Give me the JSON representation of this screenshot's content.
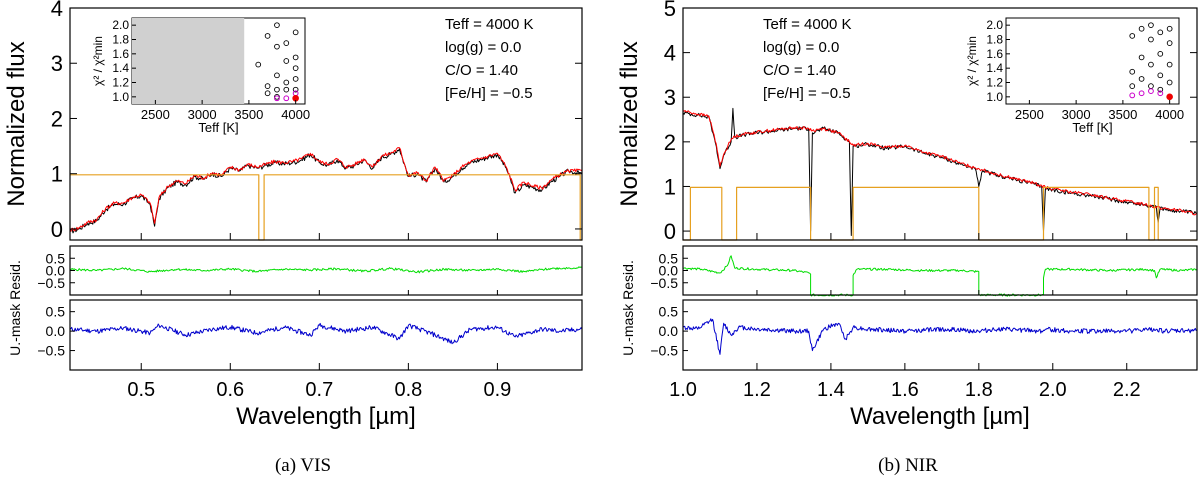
{
  "chart_data": [
    {
      "type": "line",
      "caption": "(a) VIS",
      "xlabel": "Wavelength [µm]",
      "xlim": [
        0.42,
        0.995
      ],
      "xticks": [
        "0.5",
        "0.6",
        "0.7",
        "0.8",
        "0.9"
      ],
      "main": {
        "ylabel": "Normalized flux",
        "ylim": [
          -0.2,
          4.0
        ],
        "yticks": [
          "0",
          "1",
          "2",
          "3",
          "4"
        ],
        "annotations": [
          "Teff = 4000 K",
          "log(g) = 0.0",
          "C/O = 1.40",
          "[Fe/H] = −0.5"
        ],
        "series": [
          {
            "name": "observed",
            "color": "#000000",
            "x": [
              0.42,
              0.43,
              0.44,
              0.45,
              0.46,
              0.47,
              0.48,
              0.49,
              0.5,
              0.51,
              0.515,
              0.52,
              0.53,
              0.54,
              0.55,
              0.56,
              0.57,
              0.58,
              0.59,
              0.6,
              0.61,
              0.62,
              0.63,
              0.64,
              0.65,
              0.66,
              0.67,
              0.68,
              0.69,
              0.7,
              0.71,
              0.72,
              0.73,
              0.74,
              0.75,
              0.76,
              0.77,
              0.78,
              0.79,
              0.8,
              0.81,
              0.82,
              0.83,
              0.84,
              0.85,
              0.86,
              0.87,
              0.88,
              0.89,
              0.9,
              0.91,
              0.92,
              0.93,
              0.94,
              0.95,
              0.96,
              0.97,
              0.98,
              0.995
            ],
            "y": [
              -0.05,
              0.0,
              0.1,
              0.15,
              0.35,
              0.45,
              0.45,
              0.55,
              0.6,
              0.45,
              0.05,
              0.55,
              0.75,
              0.85,
              0.8,
              0.95,
              0.9,
              1.0,
              0.95,
              1.1,
              1.05,
              1.15,
              1.1,
              1.15,
              1.2,
              1.18,
              1.2,
              1.25,
              1.35,
              1.2,
              1.15,
              1.25,
              1.1,
              1.15,
              1.25,
              1.1,
              1.3,
              1.35,
              1.45,
              0.95,
              1.0,
              0.85,
              1.1,
              0.85,
              0.95,
              1.1,
              1.2,
              1.25,
              1.3,
              1.35,
              1.1,
              0.65,
              0.8,
              0.75,
              0.7,
              0.85,
              0.95,
              1.05,
              1.0
            ]
          },
          {
            "name": "model",
            "color": "#ff0000",
            "x": [
              0.42,
              0.43,
              0.44,
              0.45,
              0.46,
              0.47,
              0.48,
              0.49,
              0.5,
              0.51,
              0.515,
              0.52,
              0.53,
              0.54,
              0.55,
              0.56,
              0.57,
              0.58,
              0.59,
              0.6,
              0.61,
              0.62,
              0.63,
              0.64,
              0.65,
              0.66,
              0.67,
              0.68,
              0.69,
              0.7,
              0.71,
              0.72,
              0.73,
              0.74,
              0.75,
              0.76,
              0.77,
              0.78,
              0.79,
              0.8,
              0.81,
              0.82,
              0.83,
              0.84,
              0.85,
              0.86,
              0.87,
              0.88,
              0.89,
              0.9,
              0.91,
              0.92,
              0.93,
              0.94,
              0.95,
              0.96,
              0.97,
              0.98,
              0.995
            ],
            "y": [
              -0.02,
              0.02,
              0.12,
              0.17,
              0.37,
              0.47,
              0.47,
              0.57,
              0.62,
              0.47,
              0.1,
              0.57,
              0.77,
              0.87,
              0.82,
              0.97,
              0.92,
              1.02,
              0.97,
              1.12,
              1.07,
              1.17,
              1.12,
              1.17,
              1.22,
              1.2,
              1.22,
              1.27,
              1.37,
              1.22,
              1.17,
              1.27,
              1.12,
              1.17,
              1.27,
              1.12,
              1.32,
              1.37,
              1.47,
              0.97,
              1.02,
              0.87,
              1.12,
              0.87,
              0.97,
              1.12,
              1.22,
              1.27,
              1.32,
              1.37,
              1.12,
              0.7,
              0.85,
              0.78,
              0.74,
              0.88,
              0.98,
              1.05,
              1.05
            ]
          },
          {
            "name": "mask",
            "color": "#e6a020",
            "x": [
              0.42,
              0.632,
              0.632,
              0.638,
              0.638,
              0.993,
              0.993,
              0.995
            ],
            "y": [
              0.98,
              0.98,
              -0.2,
              -0.2,
              0.98,
              0.98,
              -0.2,
              -0.2
            ]
          }
        ]
      },
      "resid": {
        "ylabel": "Resid.",
        "ylim": [
          -1.0,
          1.0
        ],
        "yticks": [
          "0.5",
          "0.0",
          "−0.5"
        ],
        "color": "#00dd00",
        "x": [
          0.42,
          0.45,
          0.48,
          0.51,
          0.54,
          0.57,
          0.6,
          0.63,
          0.66,
          0.69,
          0.72,
          0.75,
          0.78,
          0.81,
          0.84,
          0.87,
          0.9,
          0.93,
          0.96,
          0.995
        ],
        "y": [
          0.05,
          0.0,
          0.08,
          -0.05,
          0.05,
          0.0,
          0.06,
          -0.04,
          0.05,
          0.02,
          0.07,
          -0.03,
          0.08,
          -0.06,
          0.05,
          0.0,
          0.06,
          -0.05,
          0.08,
          0.12
        ]
      },
      "umask": {
        "ylabel": "U.-mask",
        "ylim": [
          -1.0,
          0.8
        ],
        "yticks": [
          "0.5",
          "0.0",
          "−0.5"
        ],
        "color": "#0000cc",
        "x": [
          0.42,
          0.45,
          0.48,
          0.51,
          0.52,
          0.55,
          0.58,
          0.6,
          0.63,
          0.66,
          0.69,
          0.7,
          0.73,
          0.76,
          0.79,
          0.8,
          0.83,
          0.85,
          0.87,
          0.9,
          0.92,
          0.95,
          0.97,
          0.995
        ],
        "y": [
          0.05,
          0.0,
          0.08,
          -0.05,
          0.15,
          -0.1,
          0.05,
          0.1,
          -0.05,
          0.1,
          -0.1,
          0.15,
          0.0,
          0.1,
          -0.2,
          0.15,
          -0.1,
          -0.3,
          0.05,
          0.1,
          -0.15,
          0.05,
          0.0,
          0.05
        ]
      },
      "inset": {
        "xlabel": "Teff [K]",
        "ylabel": "χ² / χ²min",
        "xlim": [
          2250,
          4100
        ],
        "ylim": [
          0.9,
          2.1
        ],
        "xticks": [
          "2500",
          "3000",
          "3500",
          "4000"
        ],
        "yticks": [
          "1.0",
          "1.2",
          "1.4",
          "1.6",
          "1.8",
          "2.0"
        ],
        "excluded_range": [
          2250,
          3450
        ],
        "points": [
          [
            3600,
            1.45
          ],
          [
            3700,
            1.85
          ],
          [
            3700,
            1.15
          ],
          [
            3700,
            1.05
          ],
          [
            3800,
            2.0
          ],
          [
            3800,
            1.7
          ],
          [
            3800,
            1.3
          ],
          [
            3800,
            1.1
          ],
          [
            3800,
            1.0
          ],
          [
            3900,
            1.75
          ],
          [
            3900,
            1.5
          ],
          [
            3900,
            1.2
          ],
          [
            3900,
            1.1
          ],
          [
            4000,
            1.9
          ],
          [
            4000,
            1.55
          ],
          [
            4000,
            1.4
          ],
          [
            4000,
            1.25
          ],
          [
            4000,
            1.1
          ]
        ],
        "magenta": [
          [
            3800,
            0.98
          ],
          [
            3900,
            0.98
          ],
          [
            4000,
            1.05
          ]
        ],
        "best": [
          4000,
          0.98
        ]
      }
    },
    {
      "type": "line",
      "caption": "(b) NIR",
      "xlabel": "Wavelength [µm]",
      "xlim": [
        1.0,
        2.39
      ],
      "xticks": [
        "1.0",
        "1.2",
        "1.4",
        "1.6",
        "1.8",
        "2.0",
        "2.2"
      ],
      "main": {
        "ylabel": "Normalized flux",
        "ylim": [
          -0.2,
          5.0
        ],
        "yticks": [
          "0",
          "1",
          "2",
          "3",
          "4",
          "5"
        ],
        "annotations": [
          "Teff = 4000 K",
          "log(g) = 0.0",
          "C/O = 1.40",
          "[Fe/H] = −0.5"
        ],
        "series": [
          {
            "name": "observed",
            "color": "#000000",
            "x": [
              1.0,
              1.04,
              1.07,
              1.09,
              1.1,
              1.11,
              1.13,
              1.135,
              1.14,
              1.16,
              1.2,
              1.25,
              1.3,
              1.34,
              1.345,
              1.35,
              1.38,
              1.42,
              1.45,
              1.455,
              1.46,
              1.5,
              1.55,
              1.6,
              1.65,
              1.7,
              1.75,
              1.79,
              1.8,
              1.81,
              1.85,
              1.9,
              1.95,
              1.97,
              1.975,
              1.98,
              2.05,
              2.1,
              2.15,
              2.2,
              2.25,
              2.28,
              2.285,
              2.29,
              2.34,
              2.39
            ],
            "y": [
              2.65,
              2.6,
              2.55,
              1.9,
              1.4,
              1.7,
              2.0,
              2.75,
              2.1,
              2.15,
              2.2,
              2.25,
              2.3,
              2.3,
              0.0,
              2.2,
              2.3,
              2.2,
              2.0,
              -0.1,
              1.9,
              1.95,
              1.85,
              1.9,
              1.75,
              1.65,
              1.5,
              1.4,
              1.0,
              1.35,
              1.25,
              1.15,
              1.05,
              1.0,
              0.0,
              0.95,
              0.85,
              0.8,
              0.72,
              0.65,
              0.58,
              0.55,
              0.2,
              0.5,
              0.45,
              0.4
            ]
          },
          {
            "name": "model",
            "color": "#ff0000",
            "x": [
              1.0,
              1.04,
              1.07,
              1.09,
              1.1,
              1.11,
              1.13,
              1.14,
              1.16,
              1.2,
              1.25,
              1.3,
              1.34,
              1.35,
              1.38,
              1.42,
              1.45,
              1.46,
              1.5,
              1.55,
              1.6,
              1.65,
              1.7,
              1.75,
              1.79,
              1.8,
              1.81,
              1.85,
              1.9,
              1.95,
              1.98,
              2.05,
              2.1,
              2.15,
              2.2,
              2.25,
              2.29,
              2.34,
              2.39
            ],
            "y": [
              2.7,
              2.62,
              2.58,
              1.95,
              1.45,
              1.72,
              2.05,
              2.12,
              2.17,
              2.22,
              2.27,
              2.32,
              2.3,
              2.25,
              2.3,
              2.2,
              2.0,
              1.92,
              1.97,
              1.87,
              1.92,
              1.77,
              1.67,
              1.52,
              1.42,
              1.4,
              1.37,
              1.27,
              1.17,
              1.07,
              0.98,
              0.87,
              0.82,
              0.74,
              0.67,
              0.6,
              0.52,
              0.47,
              0.38
            ]
          },
          {
            "name": "mask",
            "color": "#e6a020",
            "x": [
              1.0,
              1.02,
              1.02,
              1.025,
              1.025,
              1.105,
              1.105,
              1.145,
              1.145,
              1.345,
              1.345,
              1.46,
              1.46,
              1.8,
              1.8,
              1.975,
              1.975,
              2.26,
              2.26,
              2.275,
              2.275,
              2.285,
              2.285,
              2.39
            ],
            "y": [
              -0.2,
              -0.2,
              0.98,
              0.98,
              0.98,
              0.98,
              -0.2,
              -0.2,
              0.98,
              0.98,
              -0.2,
              -0.2,
              0.98,
              0.98,
              -0.2,
              -0.2,
              0.98,
              0.98,
              -0.2,
              -0.2,
              0.98,
              0.98,
              -0.2,
              -0.2
            ]
          }
        ]
      },
      "resid": {
        "ylabel": "Resid.",
        "ylim": [
          -1.0,
          1.0
        ],
        "yticks": [
          "0.5",
          "0.0",
          "−0.5"
        ],
        "color": "#00dd00",
        "x": [
          1.0,
          1.05,
          1.1,
          1.12,
          1.13,
          1.14,
          1.2,
          1.3,
          1.34,
          1.345,
          1.345,
          1.46,
          1.46,
          1.47,
          1.55,
          1.65,
          1.75,
          1.8,
          1.8,
          1.975,
          1.975,
          1.98,
          2.05,
          2.15,
          2.25,
          2.275,
          2.28,
          2.29,
          2.35,
          2.39
        ],
        "y": [
          0.1,
          0.05,
          -0.1,
          0.2,
          0.6,
          0.1,
          0.05,
          0.0,
          -0.1,
          -0.15,
          -1.0,
          -1.0,
          -0.2,
          0.05,
          0.05,
          0.0,
          0.0,
          -0.05,
          -1.0,
          -1.0,
          -0.3,
          0.05,
          0.05,
          0.0,
          0.05,
          0.0,
          -0.3,
          0.05,
          0.0,
          0.05
        ]
      },
      "umask": {
        "ylabel": "U.-mask",
        "ylim": [
          -1.0,
          0.8
        ],
        "yticks": [
          "0.5",
          "0.0",
          "−0.5"
        ],
        "color": "#0000cc",
        "x": [
          1.0,
          1.04,
          1.08,
          1.1,
          1.11,
          1.13,
          1.15,
          1.2,
          1.3,
          1.34,
          1.35,
          1.38,
          1.42,
          1.44,
          1.46,
          1.5,
          1.6,
          1.7,
          1.8,
          1.85,
          1.97,
          1.98,
          2.05,
          2.2,
          2.28,
          2.3,
          2.39
        ],
        "y": [
          0.1,
          0.05,
          0.3,
          -0.6,
          0.2,
          -0.1,
          0.1,
          0.05,
          0.0,
          0.0,
          -0.5,
          0.05,
          0.2,
          -0.2,
          0.1,
          0.05,
          0.0,
          0.05,
          0.0,
          0.05,
          0.0,
          0.05,
          0.0,
          0.0,
          0.05,
          0.0,
          0.02
        ]
      },
      "inset": {
        "xlabel": "Teff [K]",
        "ylabel": "χ² / χ²min",
        "xlim": [
          2250,
          4100
        ],
        "ylim": [
          0.9,
          2.1
        ],
        "xticks": [
          "2500",
          "3000",
          "3500",
          "4000"
        ],
        "yticks": [
          "1.0",
          "1.2",
          "1.4",
          "1.6",
          "1.8",
          "2.0"
        ],
        "excluded_range": null,
        "points": [
          [
            3600,
            1.85
          ],
          [
            3600,
            1.35
          ],
          [
            3600,
            1.15
          ],
          [
            3700,
            1.95
          ],
          [
            3700,
            1.55
          ],
          [
            3700,
            1.25
          ],
          [
            3800,
            2.0
          ],
          [
            3800,
            1.8
          ],
          [
            3800,
            1.45
          ],
          [
            3800,
            1.15
          ],
          [
            3900,
            1.9
          ],
          [
            3900,
            1.6
          ],
          [
            3900,
            1.3
          ],
          [
            3900,
            1.1
          ],
          [
            4000,
            1.95
          ],
          [
            4000,
            1.75
          ],
          [
            4000,
            1.45
          ],
          [
            4000,
            1.2
          ]
        ],
        "magenta": [
          [
            3600,
            1.02
          ],
          [
            3700,
            1.05
          ],
          [
            3800,
            1.08
          ],
          [
            3900,
            1.05
          ]
        ],
        "best": [
          4000,
          1.0
        ]
      }
    }
  ]
}
